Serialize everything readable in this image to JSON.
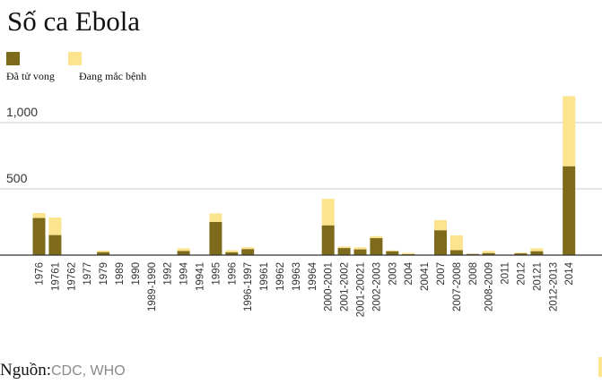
{
  "title": "Số ca Ebola",
  "legend": {
    "deaths_label": "Đã tử vong",
    "cases_label": "Đang mắc bệnh"
  },
  "source": {
    "label": "Nguồn:",
    "value": "CDC, WHO"
  },
  "colors": {
    "deaths": "#7d6a1b",
    "cases": "#fbe48d",
    "gridline": "#cccccc",
    "axis": "#333333",
    "text": "#333333"
  },
  "chart_data": {
    "type": "bar",
    "stacked": true,
    "title": "Số ca Ebola",
    "categories": [
      "1976",
      "19761",
      "19762",
      "1977",
      "1979",
      "1989",
      "1990",
      "1989-1990",
      "1992",
      "1994",
      "19941",
      "1995",
      "1996",
      "1996-1997",
      "19961",
      "19962",
      "19963",
      "19964",
      "2000-2001",
      "2001-2002",
      "2001-20021",
      "2002-2003",
      "2003",
      "2004",
      "20041",
      "2007",
      "2007-2008",
      "2008",
      "2008-2009",
      "2011",
      "2012",
      "20121",
      "2012-2013",
      "2014"
    ],
    "series": [
      {
        "name": "Đã tử vong",
        "values": [
          280,
          151,
          0,
          1,
          22,
          0,
          0,
          0,
          0,
          31,
          0,
          250,
          21,
          45,
          0,
          0,
          0,
          0,
          224,
          53,
          43,
          128,
          29,
          7,
          0,
          187,
          37,
          9,
          15,
          1,
          13,
          29,
          0,
          670
        ]
      },
      {
        "name": "Đang mắc bệnh",
        "values": [
          38,
          133,
          0,
          0,
          12,
          0,
          0,
          0,
          0,
          21,
          0,
          65,
          16,
          15,
          0,
          0,
          0,
          0,
          201,
          12,
          16,
          15,
          6,
          10,
          0,
          77,
          112,
          0,
          17,
          0,
          6,
          23,
          0,
          530
        ]
      }
    ],
    "yticks": [
      500,
      1000
    ],
    "ytick_labels": [
      "500",
      "1,000"
    ],
    "ylim": [
      0,
      1200
    ],
    "grid": true,
    "legend_position": "top-left"
  }
}
